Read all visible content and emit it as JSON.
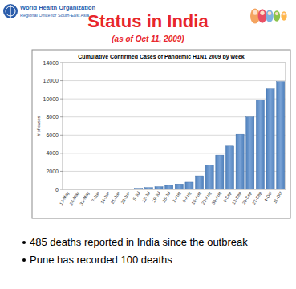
{
  "header": {
    "org": "World Health Organization",
    "org_sub": "Regional Office for South-East Asia",
    "title": "Status in India",
    "subtitle": "(as of Oct 11, 2009)"
  },
  "bullets": [
    "485 deaths reported in India since the outbreak",
    "Pune has recorded 100 deaths"
  ],
  "chart_data": {
    "type": "bar",
    "title": "Cumulative Confirmed Cases of Pandemic H1N1 2009 by week",
    "y_label": "# of cases",
    "categories": [
      "17-May",
      "24-May",
      "31-May",
      "7-Jun",
      "14-Jun",
      "21-Jun",
      "28-Jun",
      "5-Jul",
      "12-Jul",
      "19-Jul",
      "26-Jul",
      "2-Aug",
      "9-Aug",
      "16-Aug",
      "23-Aug",
      "30-Aug",
      "6-Sep",
      "13-Sep",
      "20-Sep",
      "27-Sep",
      "4-Oct",
      "11-Oct"
    ],
    "values": [
      1,
      2,
      4,
      10,
      20,
      40,
      70,
      120,
      200,
      300,
      450,
      600,
      800,
      1500,
      2700,
      3800,
      4800,
      6100,
      8000,
      9900,
      11100,
      11900
    ],
    "color": "#4f81bd",
    "ylim": [
      0,
      14000
    ],
    "yticks": [
      0,
      2000,
      4000,
      6000,
      8000,
      10000,
      12000,
      14000
    ],
    "grid": true
  }
}
